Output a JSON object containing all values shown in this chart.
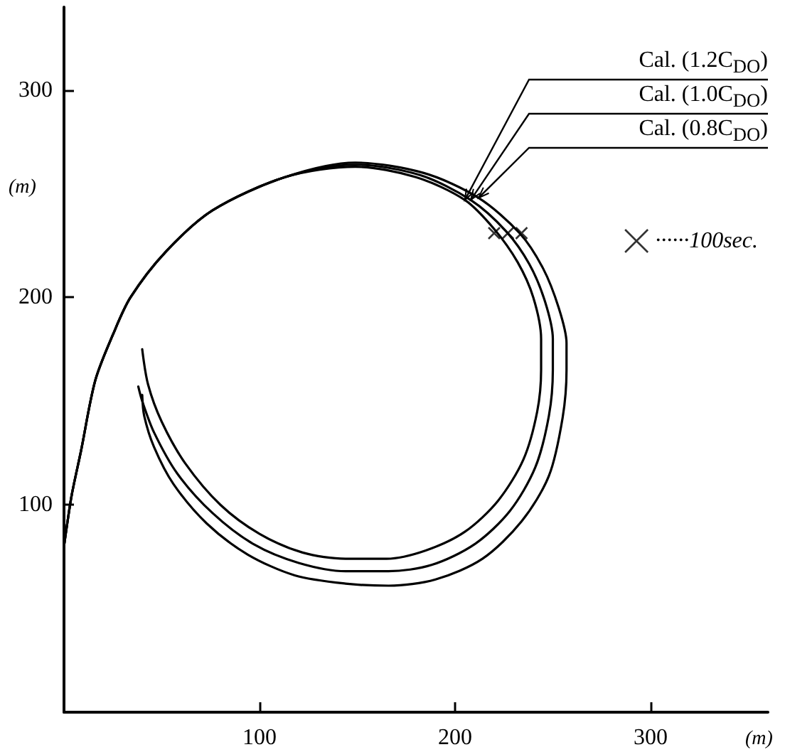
{
  "chart_data": {
    "type": "line",
    "xlabel": "(m)",
    "ylabel": "(m)",
    "xlim": [
      0,
      360
    ],
    "ylim": [
      0,
      340
    ],
    "xticks": [
      100,
      200,
      300
    ],
    "yticks": [
      100,
      200,
      300
    ],
    "grid": false,
    "legend": "right",
    "line_style": "solid",
    "marker": "none",
    "series": [
      {
        "name": "Cal. (1.2C$_{DO}$)",
        "color": "#000000",
        "x": [
          0,
          1.5,
          4,
          8.7,
          16,
          25,
          34,
          52,
          76,
          113,
          149,
          180,
          205,
          220,
          232,
          240,
          244,
          244,
          242,
          235,
          222,
          205,
          185,
          165,
          144,
          122,
          100,
          80,
          62,
          50,
          43,
          40
        ],
        "values": [
          80,
          90,
          105,
          126,
          160,
          182,
          200,
          222,
          242,
          258,
          263,
          258,
          247,
          233,
          217,
          200,
          180,
          165,
          145,
          122,
          102,
          87,
          78,
          74,
          74,
          77,
          86,
          100,
          120,
          140,
          158,
          175
        ]
      },
      {
        "name": "Cal. (1.0C$_{DO}$)",
        "color": "#000000",
        "x": [
          0,
          1.5,
          4,
          8.7,
          16,
          25,
          34,
          52,
          76,
          113,
          149,
          182,
          208,
          226,
          238,
          246,
          250,
          250,
          248,
          241,
          228,
          210,
          188,
          166,
          144,
          120,
          97,
          76,
          58,
          46,
          40,
          38
        ],
        "values": [
          80,
          90,
          105,
          126,
          160,
          182,
          200,
          222,
          242,
          258,
          264,
          259,
          247,
          232,
          216,
          198,
          180,
          165,
          143,
          118,
          97,
          81,
          71,
          68,
          68,
          72,
          81,
          96,
          115,
          135,
          150,
          157
        ]
      },
      {
        "name": "Cal. (0.8C$_{DO}$)",
        "color": "#000000",
        "x": [
          0,
          1.5,
          4,
          8.7,
          16,
          25,
          34,
          52,
          76,
          113,
          149,
          184,
          212,
          233,
          245,
          253,
          257,
          257,
          255,
          248,
          234,
          214,
          190,
          166,
          144,
          118,
          94,
          73,
          56,
          46,
          41,
          40
        ],
        "values": [
          80,
          90,
          105,
          126,
          160,
          182,
          200,
          222,
          242,
          258,
          265,
          260,
          248,
          231,
          214,
          195,
          178,
          165,
          142,
          114,
          92,
          74,
          64,
          61,
          62,
          66,
          76,
          91,
          110,
          128,
          143,
          153
        ]
      },
      {
        "name": "······100sec.",
        "type": "scatter",
        "marker": "cross",
        "color": "#000000",
        "x": [
          220,
          227,
          234
        ],
        "values": [
          231,
          231,
          231
        ]
      }
    ]
  }
}
